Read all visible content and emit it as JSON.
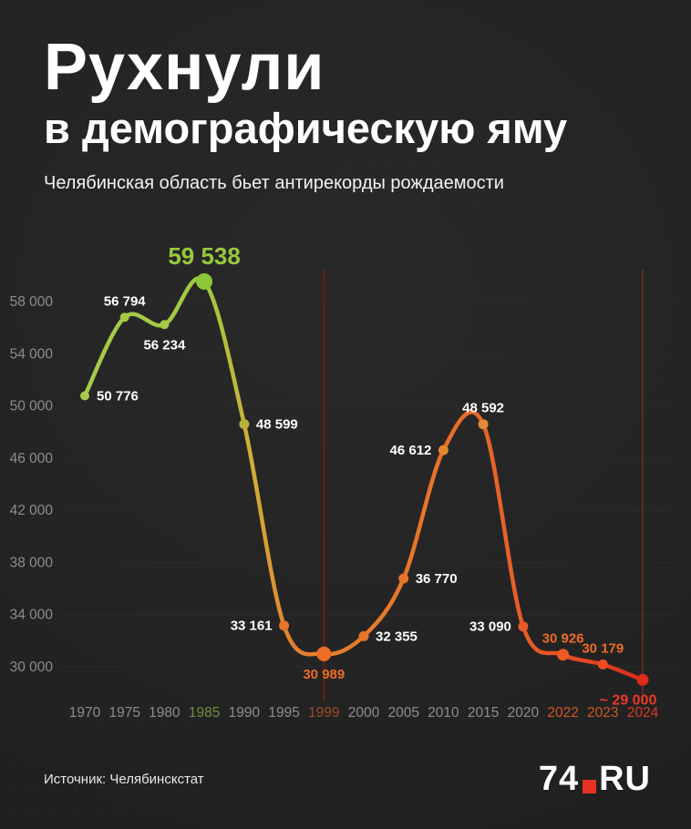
{
  "header": {
    "title_line1": "Рухнули",
    "title_line2": "в демографическую яму",
    "subtitle": "Челябинская область бьет антирекорды рождаемости"
  },
  "footer": {
    "source": "Источник: Челябинскстат",
    "brand_left": "74",
    "brand_right": "RU"
  },
  "colors": {
    "background": "#232323",
    "text": "#ffffff",
    "muted": "#8d8d8d",
    "accent_green": "#97c93c",
    "accent_orange": "#ee6b26",
    "accent_red": "#e8392b",
    "brand_red": "#e63223"
  },
  "chart_data": {
    "type": "line",
    "title": "Рухнули в демографическую яму",
    "subtitle": "Челябинская область бьет антирекорды рождаемости",
    "source": "Источник: Челябинскстат",
    "categories": [
      "1970",
      "1975",
      "1980",
      "1985",
      "1990",
      "1995",
      "1999",
      "2000",
      "2005",
      "2010",
      "2015",
      "2020",
      "2022",
      "2023",
      "2024"
    ],
    "values": [
      50776,
      56794,
      56234,
      59538,
      48599,
      33161,
      30989,
      32355,
      36770,
      46612,
      48592,
      33090,
      30926,
      30179,
      29000
    ],
    "point_labels": [
      "50 776",
      "56 794",
      "56 234",
      "59 538",
      "48 599",
      "33 161",
      "30 989",
      "32 355",
      "36 770",
      "46 612",
      "48 592",
      "33 090",
      "30 926",
      "30 179",
      "~ 29 000"
    ],
    "label_positions": [
      "right",
      "above",
      "below",
      "above-big",
      "right",
      "left",
      "below",
      "right",
      "right",
      "left",
      "above",
      "left",
      "above",
      "above",
      "below"
    ],
    "label_colors": [
      "#ffffff",
      "#ffffff",
      "#ffffff",
      "#97c93c",
      "#ffffff",
      "#ffffff",
      "#ee6b26",
      "#ffffff",
      "#ffffff",
      "#ffffff",
      "#ffffff",
      "#ffffff",
      "#ee6b26",
      "#ee6b26",
      "#e8392b"
    ],
    "label_sizes": [
      15,
      15,
      15,
      26,
      15,
      15,
      15,
      15,
      15,
      15,
      15,
      15,
      15,
      15,
      16
    ],
    "label_dx": [
      0,
      0,
      0,
      0,
      0,
      0,
      0,
      0,
      0,
      0,
      0,
      0,
      0,
      0,
      -16
    ],
    "point_colors": [
      "#a8c94c",
      "#a3ca46",
      "#a0cb44",
      "#8dc636",
      "#b9b13c",
      "#e4772c",
      "#ed6d26",
      "#e4772c",
      "#e77329",
      "#e38732",
      "#e08a33",
      "#e55a26",
      "#ef5a23",
      "#ee4d20",
      "#dc2c1c"
    ],
    "point_radii": [
      5,
      5,
      5,
      9,
      5.5,
      5.5,
      8,
      5.5,
      5.5,
      5.5,
      5.5,
      5.5,
      6.5,
      5.5,
      6.5
    ],
    "y_ticks": [
      {
        "value": 58000,
        "label": "58 000"
      },
      {
        "value": 54000,
        "label": "54 000"
      },
      {
        "value": 50000,
        "label": "50 000"
      },
      {
        "value": 46000,
        "label": "46 000"
      },
      {
        "value": 42000,
        "label": "42 000"
      },
      {
        "value": 38000,
        "label": "38 000"
      },
      {
        "value": 34000,
        "label": "34 000"
      },
      {
        "value": 30000,
        "label": "30 000"
      }
    ],
    "ylim": [
      28600,
      60600
    ],
    "axis_color": "#8d8d8d",
    "grid_color": "#2b2b2b",
    "grid": "subtle-horizontal",
    "legend": "none",
    "x_tick_colors": [
      "#8d8d8d",
      "#8d8d8d",
      "#8d8d8d",
      "#6f8e3c",
      "#8d8d8d",
      "#8d8d8d",
      "#9e4a2c",
      "#8d8d8d",
      "#8d8d8d",
      "#8d8d8d",
      "#8d8d8d",
      "#8d8d8d",
      "#d05722",
      "#d05722",
      "#da3a28"
    ],
    "gradient_stops": [
      {
        "offset": 0,
        "color": "#a8c94c"
      },
      {
        "offset": 0.21,
        "color": "#9ecb42"
      },
      {
        "offset": 0.3,
        "color": "#cfae38"
      },
      {
        "offset": 0.37,
        "color": "#e4802e"
      },
      {
        "offset": 0.62,
        "color": "#e9732a"
      },
      {
        "offset": 0.85,
        "color": "#e55326"
      },
      {
        "offset": 1,
        "color": "#d92b1e"
      }
    ],
    "highlight_lines": [
      {
        "index": 6,
        "color": "#6b2015",
        "opacity": 0.9
      },
      {
        "index": 14,
        "color": "#e03a2a",
        "opacity": 0.3
      }
    ]
  }
}
